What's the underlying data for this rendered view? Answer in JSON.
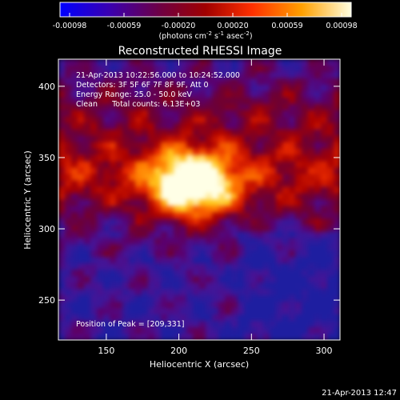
{
  "colorbar": {
    "tick_labels": [
      "-0.00098",
      "-0.00059",
      "-0.00020",
      "0.00020",
      "0.00059",
      "0.00098"
    ],
    "range": [
      -0.00098,
      0.00098
    ],
    "units_main": "(photons cm",
    "units_exp1": "-2",
    "units_mid1": " s",
    "units_exp2": "-1",
    "units_mid2": " asec",
    "units_exp3": "-2",
    "units_end": ")",
    "colors": [
      "#0000ff",
      "#400060",
      "#800010",
      "#c00000",
      "#ff4000",
      "#ffb000",
      "#ffffe0"
    ]
  },
  "chart_data": {
    "type": "heatmap",
    "title": "Reconstructed RHESSI Image",
    "xlabel": "Heliocentric X (arcsec)",
    "ylabel": "Heliocentric Y (arcsec)",
    "xlim": [
      117,
      311
    ],
    "ylim": [
      222,
      419
    ],
    "x_ticks": [
      "150",
      "200",
      "250",
      "300"
    ],
    "x_tick_values": [
      150,
      200,
      250,
      300
    ],
    "y_ticks": [
      "250",
      "300",
      "350",
      "400"
    ],
    "y_tick_values": [
      250,
      300,
      350,
      400
    ],
    "peak": [
      209,
      331
    ],
    "annotations": {
      "line1": "21-Apr-2013 10:22:56.000 to 10:24:52.000",
      "line2": "Detectors: 3F 5F 6F 7F 8F 9F, Att 0",
      "line3": "Energy Range: 25.0 - 50.0 keV",
      "line4": "Clean      Total counts: 6.13E+03",
      "peak_text": "Position of Peak = [209,331]"
    },
    "timestamp": "21-Apr-2013 12:47"
  }
}
